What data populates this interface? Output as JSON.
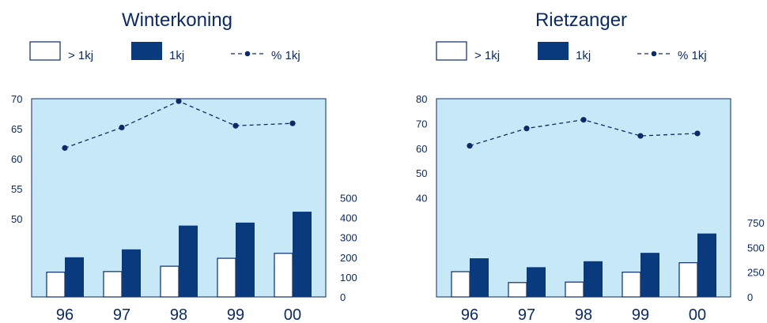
{
  "colors": {
    "plot_bg": "#c6e8f7",
    "ink": "#0a2a6b",
    "bar_fill": "#0a3a7e",
    "open_bar_fill": "#ffffff"
  },
  "chart_data": [
    {
      "type": "bar",
      "title": "Winterkoning",
      "categories": [
        "96",
        "97",
        "98",
        "99",
        "00"
      ],
      "legend": {
        "labels": [
          "> 1kj",
          "1kj",
          "% 1kj"
        ],
        "placement": "top"
      },
      "series": [
        {
          "name": "> 1kj",
          "kind": "bar-open",
          "axis": "right",
          "values": [
            125,
            128,
            155,
            195,
            220
          ]
        },
        {
          "name": "1kj",
          "kind": "bar-filled",
          "axis": "right",
          "values": [
            200,
            240,
            360,
            375,
            430
          ]
        },
        {
          "name": "% 1kj",
          "kind": "line-dashed-markers",
          "axis": "left",
          "values": [
            61.8,
            65.2,
            69.6,
            65.5,
            65.9
          ]
        }
      ],
      "y_left": {
        "ticks": [
          "70",
          "65",
          "60",
          "55",
          "50"
        ],
        "range": [
          37,
          70
        ]
      },
      "y_right": {
        "ticks": [
          "500",
          "400",
          "300",
          "200",
          "100",
          "0"
        ],
        "range": [
          0,
          1000
        ]
      }
    },
    {
      "type": "bar",
      "title": "Rietzanger",
      "categories": [
        "96",
        "97",
        "98",
        "99",
        "00"
      ],
      "legend": {
        "labels": [
          "> 1kj",
          "1kj",
          "% 1kj"
        ],
        "placement": "top"
      },
      "series": [
        {
          "name": "> 1kj",
          "kind": "bar-open",
          "axis": "right",
          "values": [
            255,
            145,
            150,
            250,
            345
          ]
        },
        {
          "name": "1kj",
          "kind": "bar-filled",
          "axis": "right",
          "values": [
            390,
            300,
            360,
            445,
            640
          ]
        },
        {
          "name": "% 1kj",
          "kind": "line-dashed-markers",
          "axis": "left",
          "values": [
            61,
            68,
            71.5,
            65,
            66
          ]
        }
      ],
      "y_left": {
        "ticks": [
          "80",
          "70",
          "60",
          "50",
          "40"
        ],
        "range": [
          0,
          80
        ]
      },
      "y_right": {
        "ticks": [
          "750",
          "500",
          "250",
          "0"
        ],
        "range": [
          0,
          2000
        ]
      }
    }
  ]
}
